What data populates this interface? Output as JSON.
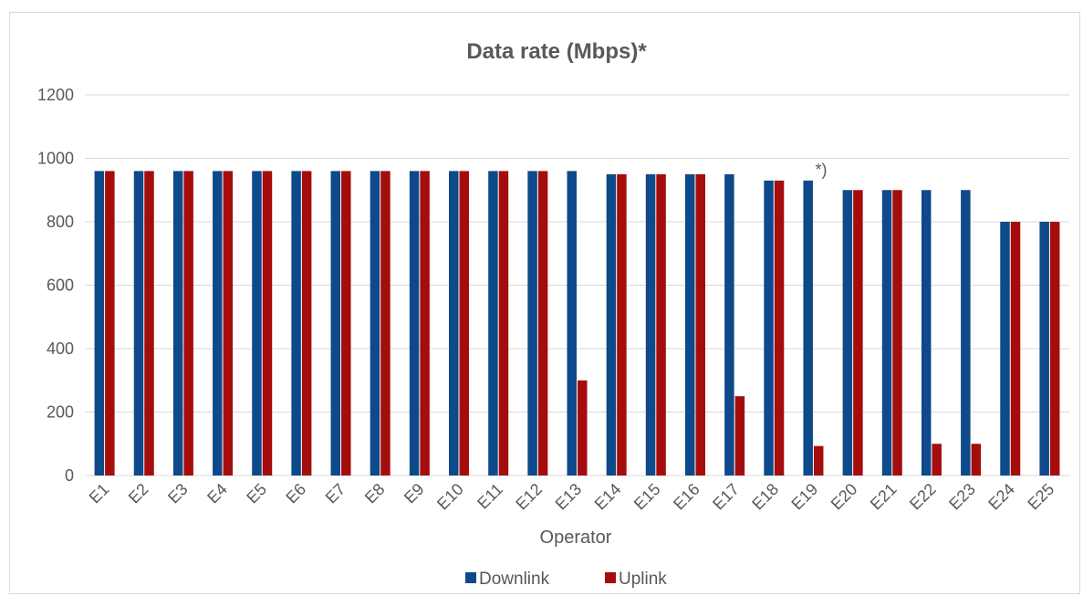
{
  "chart_data": {
    "type": "bar",
    "title": "Data rate (Mbps)*",
    "xlabel": "Operator",
    "ylabel": "",
    "ylim": [
      0,
      1200
    ],
    "yticks": [
      0,
      200,
      400,
      600,
      800,
      1000,
      1200
    ],
    "grid": true,
    "legend_position": "bottom",
    "categories": [
      "E1",
      "E2",
      "E3",
      "E4",
      "E5",
      "E6",
      "E7",
      "E8",
      "E9",
      "E10",
      "E11",
      "E12",
      "E13",
      "E14",
      "E15",
      "E16",
      "E17",
      "E18",
      "E19",
      "E20",
      "E21",
      "E22",
      "E23",
      "E24",
      "E25"
    ],
    "series": [
      {
        "name": "Downlink",
        "color": "#0e4a8a",
        "values": [
          960,
          960,
          960,
          960,
          960,
          960,
          960,
          960,
          960,
          960,
          960,
          960,
          960,
          950,
          950,
          950,
          950,
          930,
          930,
          900,
          900,
          900,
          900,
          800,
          800
        ]
      },
      {
        "name": "Uplink",
        "color": "#a50d0d",
        "values": [
          960,
          960,
          960,
          960,
          960,
          960,
          960,
          960,
          960,
          960,
          960,
          960,
          300,
          950,
          950,
          950,
          250,
          930,
          93,
          900,
          900,
          100,
          100,
          800,
          800
        ]
      }
    ],
    "annotations": [
      {
        "text": "*)",
        "category": "E19",
        "value": 930
      }
    ]
  }
}
